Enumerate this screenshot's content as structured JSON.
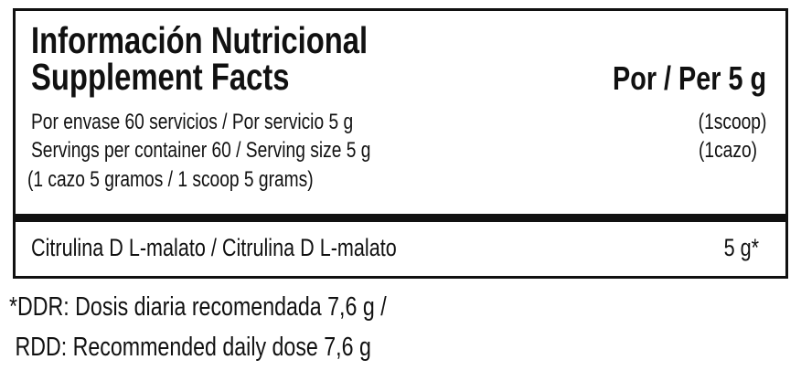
{
  "header": {
    "title_es": "Información Nutricional",
    "title_en": "Supplement Facts",
    "per_label": "Por / Per 5 g"
  },
  "serving_info": {
    "line1": "Por envase 60 servicios / Por servicio 5 g",
    "line1_right": "(1scoop)",
    "line2": "Servings per container 60 / Serving size  5 g",
    "line2_right": "(1cazo)",
    "line3": "(1 cazo 5 gramos / 1 scoop 5 grams)"
  },
  "ingredients": [
    {
      "name": "Citrulina D L-malato / Citrulina D L-malato",
      "amount": "5 g*"
    }
  ],
  "footnote": {
    "line1": "*DDR: Dosis diaria recomendada 7,6 g /",
    "line2": " RDD: Recommended daily dose 7,6 g"
  }
}
